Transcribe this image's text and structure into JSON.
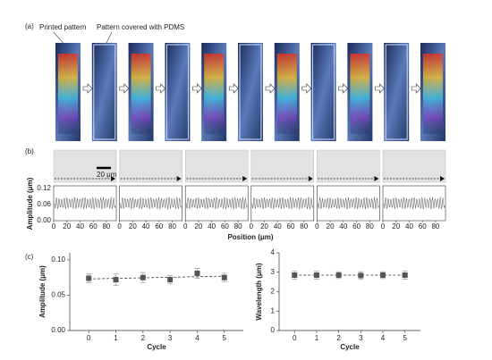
{
  "panel_a": {
    "label": "(a)",
    "annotations": [
      "Printed pattern",
      "Pattern covered with PDMS"
    ]
  },
  "panel_b": {
    "label": "(b)",
    "scale_bar": "20 μm",
    "ylabel": "Amplitude (μm)",
    "xlabel": "Position (μm)",
    "ylim": [
      0,
      0.13
    ],
    "yticks": [
      {
        "value": 0.12,
        "label": "0.12"
      },
      {
        "value": 0.06,
        "label": "0.06"
      },
      {
        "value": 0,
        "label": "0.00"
      }
    ],
    "xlim": [
      0,
      95
    ],
    "xticks": [
      0,
      20,
      40,
      60,
      80
    ]
  },
  "panel_c": {
    "label": "(c)"
  },
  "chart_data": [
    {
      "type": "scatter",
      "ylabel": "Amplitude (μm)",
      "xlabel": "Cycle",
      "x": [
        0,
        1,
        2,
        3,
        4,
        5
      ],
      "xlim": [
        -0.7,
        5.7
      ],
      "xticks": [
        0,
        1,
        2,
        3,
        4,
        5
      ],
      "values": [
        0.074,
        0.072,
        0.075,
        0.072,
        0.081,
        0.075
      ],
      "errors": [
        0.006,
        0.008,
        0.007,
        0.006,
        0.007,
        0.006
      ],
      "trend": [
        0.073,
        0.077
      ],
      "ylim": [
        0,
        0.11
      ],
      "yticks": [
        {
          "value": 0,
          "label": "0.00"
        },
        {
          "value": 0.05,
          "label": "0.05"
        },
        {
          "value": 0.1,
          "label": "0.10"
        }
      ],
      "color": "#555555"
    },
    {
      "type": "scatter",
      "ylabel": "Wavelength (μm)",
      "xlabel": "Cycle",
      "x": [
        0,
        1,
        2,
        3,
        4,
        5
      ],
      "xlim": [
        -0.7,
        5.7
      ],
      "xticks": [
        0,
        1,
        2,
        3,
        4,
        5
      ],
      "values": [
        2.85,
        2.85,
        2.85,
        2.83,
        2.85,
        2.85
      ],
      "errors": [
        0.2,
        0.2,
        0.18,
        0.2,
        0.18,
        0.2
      ],
      "trend": [
        2.85,
        2.85
      ],
      "ylim": [
        0,
        4
      ],
      "yticks": [
        0,
        1,
        2,
        3,
        4
      ],
      "color": "#555555"
    }
  ]
}
